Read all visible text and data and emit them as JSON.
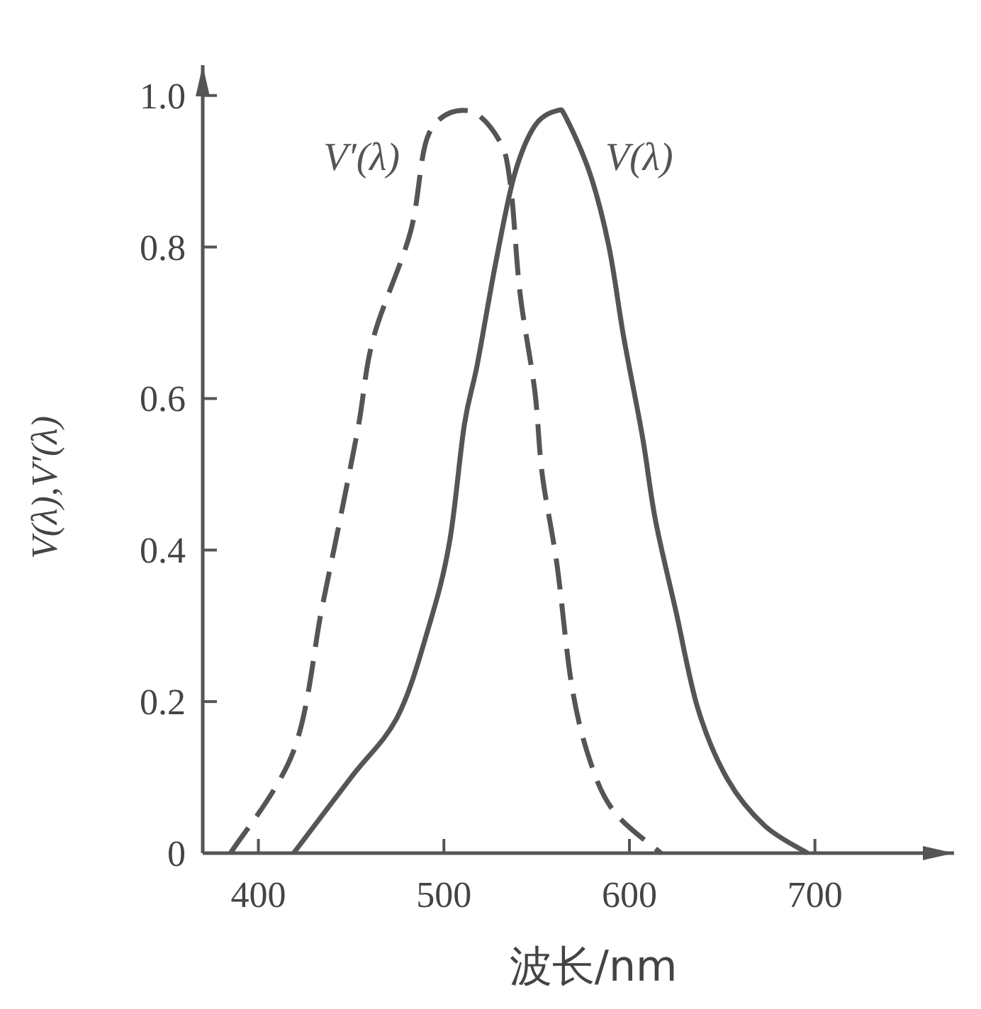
{
  "chart_data": {
    "type": "line",
    "xlabel": "波长/nm",
    "ylabel": "V(λ),V′(λ)",
    "xlim": [
      370,
      775
    ],
    "ylim": [
      0,
      1.04
    ],
    "xticks": [
      400,
      500,
      600,
      700
    ],
    "yticks": [
      0,
      0.2,
      0.4,
      0.6,
      0.8,
      {
        "value": 1,
        "label": "1.0"
      }
    ],
    "series": [
      {
        "name": "V′(λ)",
        "color": "#555555",
        "line_style": "dashed",
        "x": [
          385,
          419,
          434,
          444,
          454,
          462,
          482,
          492,
          513,
          530,
          536,
          541,
          549,
          553,
          561,
          569,
          579,
          592,
          617
        ],
        "values": [
          0,
          0.135,
          0.32,
          0.44,
          0.565,
          0.68,
          0.82,
          0.95,
          0.98,
          0.94,
          0.88,
          0.74,
          0.61,
          0.5,
          0.38,
          0.22,
          0.12,
          0.054,
          0
        ]
      },
      {
        "name": "V(λ)",
        "color": "#555555",
        "line_style": "solid",
        "x": [
          419,
          450,
          475,
          492,
          503,
          511,
          518,
          528,
          538,
          549,
          561,
          566,
          579,
          589,
          597,
          607,
          614,
          625,
          637,
          653,
          673,
          696
        ],
        "values": [
          0,
          0.1,
          0.18,
          0.3,
          0.41,
          0.565,
          0.645,
          0.78,
          0.895,
          0.96,
          0.98,
          0.97,
          0.895,
          0.8,
          0.68,
          0.55,
          0.44,
          0.32,
          0.19,
          0.097,
          0.036,
          0
        ]
      }
    ]
  }
}
